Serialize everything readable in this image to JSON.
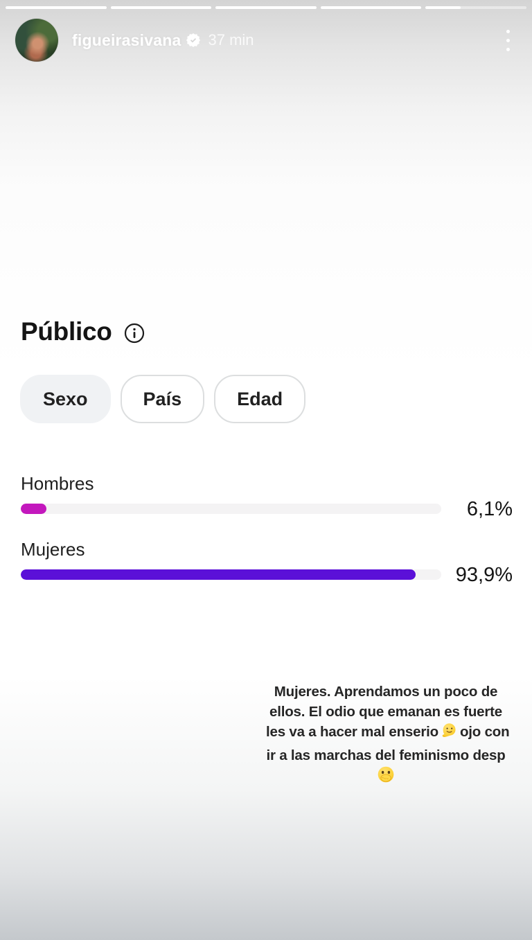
{
  "story": {
    "progress_percents": [
      100,
      100,
      100,
      100,
      35
    ],
    "header": {
      "username": "figueirasivana",
      "timestamp": "37 min"
    }
  },
  "insights": {
    "title": "Público",
    "tabs": [
      {
        "label": "Sexo",
        "selected": true
      },
      {
        "label": "País",
        "selected": false
      },
      {
        "label": "Edad",
        "selected": false
      }
    ]
  },
  "chart_data": {
    "type": "bar",
    "orientation": "horizontal",
    "title": "Público",
    "categories": [
      "Hombres",
      "Mujeres"
    ],
    "values": [
      6.1,
      93.9
    ],
    "value_labels": [
      "6,1%",
      "93,9%"
    ],
    "xlim": [
      0,
      100
    ],
    "bar_colors": [
      "#c318bd",
      "#5b10d8"
    ],
    "track_color": "#f4f3f4"
  },
  "caption": {
    "line1": "Mujeres. Aprendamos un poco de",
    "line2": "ellos. El odio que emanan es fuerte",
    "line3_before": "les va a hacer mal enserio",
    "line3_after": "ojo con",
    "line4": "ir a las marchas del feminismo desp",
    "emoji_melting_face": "🫠",
    "emoji_hand_over_mouth": "🤭"
  }
}
